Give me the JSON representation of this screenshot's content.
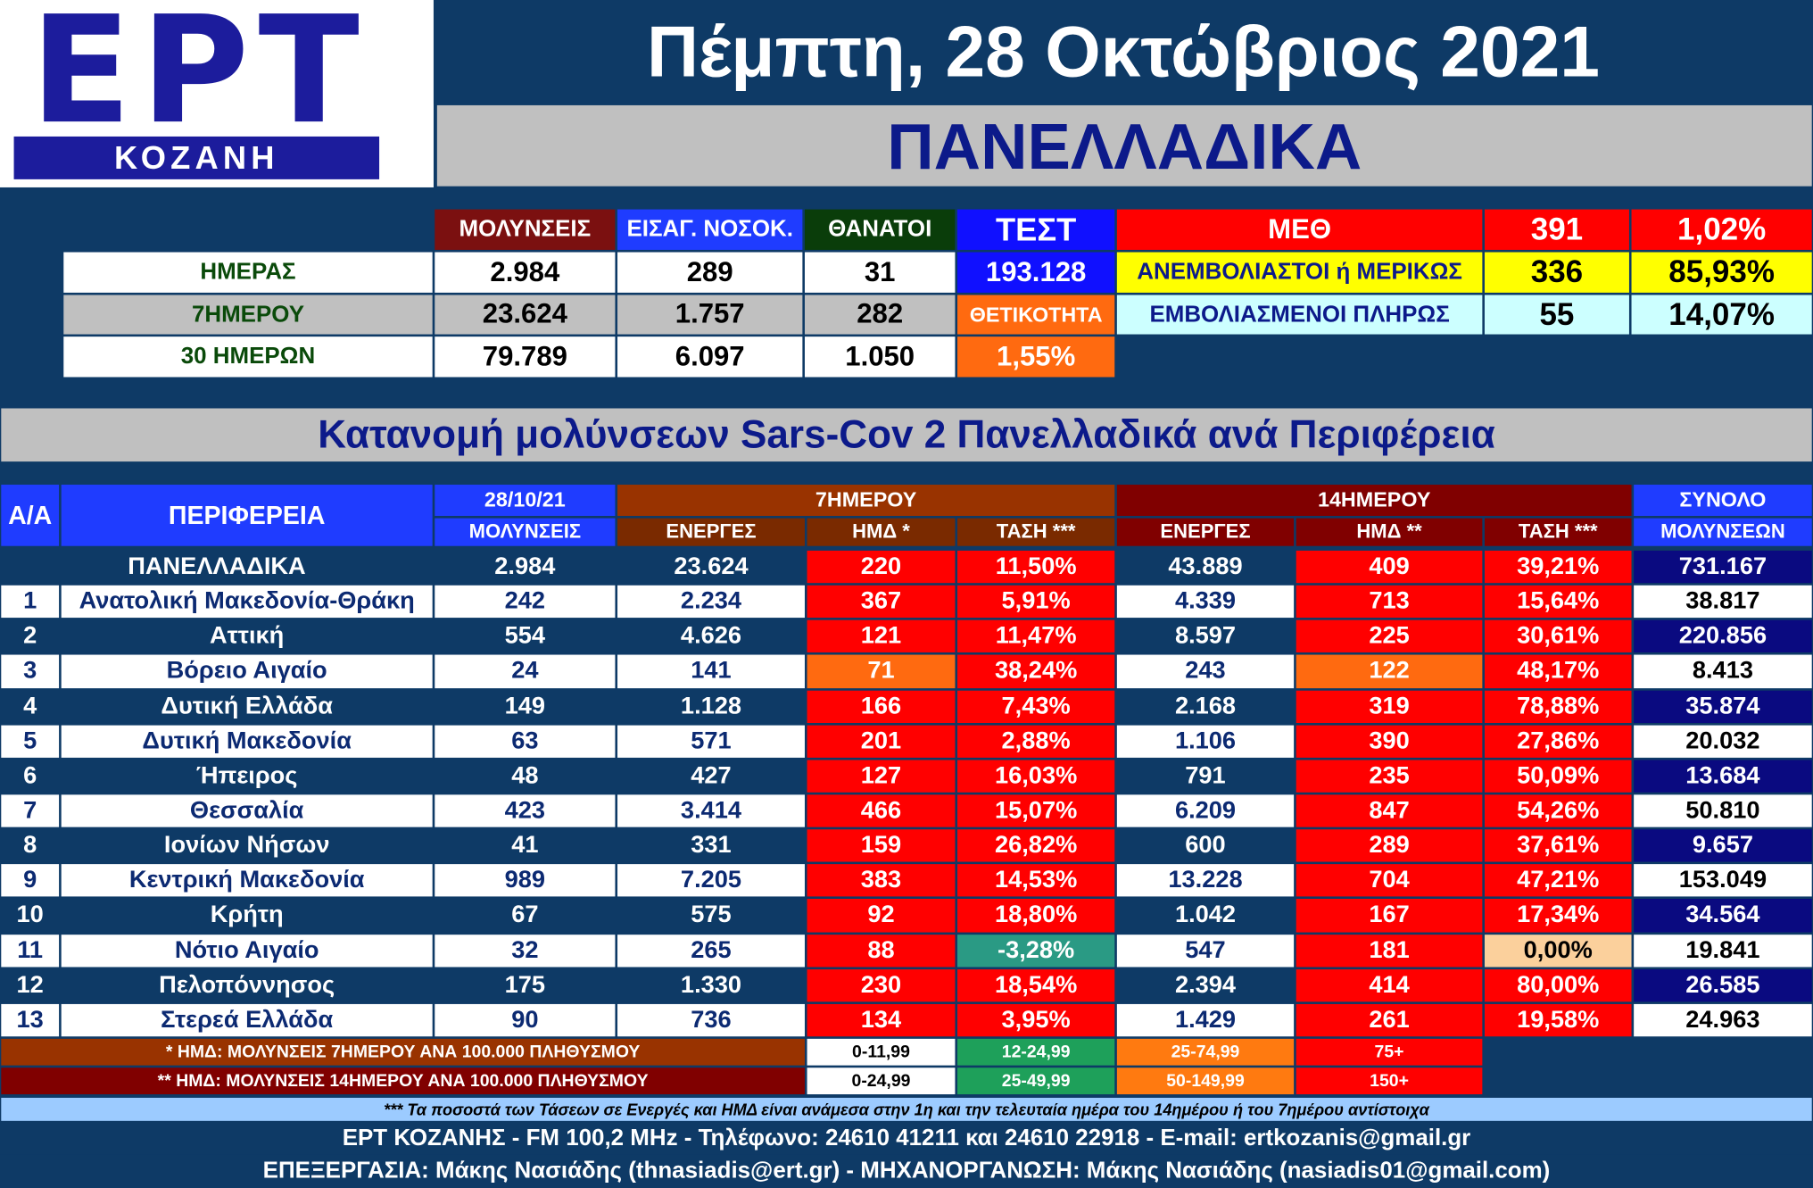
{
  "header": {
    "logo_title": "ΕΡΤ",
    "logo_subtitle": "ΚΟΖΑΝΗ",
    "date": "Πέμπτη, 28 Οκτώβριος 2021",
    "region": "ΠΑΝΕΛΛΑΔΙΚΑ"
  },
  "summary": {
    "headers": [
      "ΜΟΛΥΝΣΕΙΣ",
      "ΕΙΣΑΓ. ΝΟΣΟΚ.",
      "ΘΑΝΑΤΟΙ",
      "ΤΕΣΤ"
    ],
    "rows": [
      {
        "label": "ΗΜΕΡΑΣ",
        "values": [
          "2.984",
          "289",
          "31",
          "193.128"
        ]
      },
      {
        "label": "7ΗΜΕΡΟΥ",
        "values": [
          "23.624",
          "1.757",
          "282",
          "ΘΕΤΙΚΟΤΗΤΑ"
        ]
      },
      {
        "label": "30 ΗΜΕΡΩΝ",
        "values": [
          "79.789",
          "6.097",
          "1.050",
          "1,55%"
        ]
      }
    ]
  },
  "icu": {
    "rows": [
      [
        "ΜΕΘ",
        "391",
        "1,02%"
      ],
      [
        "ΑΝΕΜΒΟΛΙΑΣΤΟΙ ή ΜΕΡΙΚΩΣ",
        "336",
        "85,93%"
      ],
      [
        "ΕΜΒΟΛΙΑΣΜΕΝΟΙ ΠΛΗΡΩΣ",
        "55",
        "14,07%"
      ]
    ]
  },
  "table": {
    "title": "Κατανομή μολύνσεων Sars-Cov 2 Πανελλαδικά ανά Περιφέρεια",
    "head_top": [
      "Α/Α",
      "ΠΕΡΙΦΕΡΕΙΑ",
      "28/10/21",
      "7ΗΜΕΡΟΥ",
      "14ΗΜΕΡΟΥ",
      "ΣΥΝΟΛΟ"
    ],
    "head_sub": [
      "ΜΟΛΥΝΣΕΙΣ",
      "ΕΝΕΡΓΕΣ",
      "ΗΜΔ *",
      "ΤΑΣΗ ***",
      "ΕΝΕΡΓΕΣ",
      "ΗΜΔ **",
      "ΤΑΣΗ ***",
      "ΜΟΛΥΝΣΕΩΝ"
    ],
    "total": [
      "ΠΑΝΕΛΛΑΔΙΚΑ",
      "2.984",
      "23.624",
      "220",
      "11,50%",
      "43.889",
      "409",
      "39,21%",
      "731.167"
    ],
    "rows": [
      {
        "cells": [
          "1",
          "Ανατολική Μακεδονία-Θράκη",
          "242",
          "2.234",
          "367",
          "5,91%",
          "4.339",
          "713",
          "15,64%",
          "38.817"
        ]
      },
      {
        "cells": [
          "2",
          "Αττική",
          "554",
          "4.626",
          "121",
          "11,47%",
          "8.597",
          "225",
          "30,61%",
          "220.856"
        ]
      },
      {
        "cells": [
          "3",
          "Βόρειο Αιγαίο",
          "24",
          "141",
          "71",
          "38,24%",
          "243",
          "122",
          "48,17%",
          "8.413"
        ],
        "fills": {
          "4": "#ff6a10",
          "7": "#ff6a10"
        }
      },
      {
        "cells": [
          "4",
          "Δυτική Ελλάδα",
          "149",
          "1.128",
          "166",
          "7,43%",
          "2.168",
          "319",
          "78,88%",
          "35.874"
        ]
      },
      {
        "cells": [
          "5",
          "Δυτική Μακεδονία",
          "63",
          "571",
          "201",
          "2,88%",
          "1.106",
          "390",
          "27,86%",
          "20.032"
        ]
      },
      {
        "cells": [
          "6",
          "Ήπειρος",
          "48",
          "427",
          "127",
          "16,03%",
          "791",
          "235",
          "50,09%",
          "13.684"
        ]
      },
      {
        "cells": [
          "7",
          "Θεσσαλία",
          "423",
          "3.414",
          "466",
          "15,07%",
          "6.209",
          "847",
          "54,26%",
          "50.810"
        ]
      },
      {
        "cells": [
          "8",
          "Ιονίων Νήσων",
          "41",
          "331",
          "159",
          "26,82%",
          "600",
          "289",
          "37,61%",
          "9.657"
        ]
      },
      {
        "cells": [
          "9",
          "Κεντρική Μακεδονία",
          "989",
          "7.205",
          "383",
          "14,53%",
          "13.228",
          "704",
          "47,21%",
          "153.049"
        ]
      },
      {
        "cells": [
          "10",
          "Κρήτη",
          "67",
          "575",
          "92",
          "18,80%",
          "1.042",
          "167",
          "17,34%",
          "34.564"
        ]
      },
      {
        "cells": [
          "11",
          "Νότιο Αιγαίο",
          "32",
          "265",
          "88",
          "-3,28%",
          "547",
          "181",
          "0,00%",
          "19.841"
        ],
        "fills": {
          "5": "#2a9a84",
          "8": "#fbd09c"
        }
      },
      {
        "cells": [
          "12",
          "Πελοπόννησος",
          "175",
          "1.330",
          "230",
          "18,54%",
          "2.394",
          "414",
          "80,00%",
          "26.585"
        ]
      },
      {
        "cells": [
          "13",
          "Στερεά Ελλάδα",
          "90",
          "736",
          "134",
          "3,95%",
          "1.429",
          "261",
          "19,58%",
          "24.963"
        ]
      }
    ]
  },
  "legend": [
    {
      "label": "* ΗΜΔ: ΜΟΛΥΝΣΕΙΣ 7ΗΜΕΡΟΥ ΑΝΑ 100.000 ΠΛΗΘΥΣΜΟΥ",
      "ranges": [
        "0-11,99",
        "12-24,99",
        "25-74,99",
        "75+"
      ]
    },
    {
      "label": "** ΗΜΔ: ΜΟΛΥΝΣΕΙΣ 14ΗΜΕΡΟΥ ΑΝΑ 100.000 ΠΛΗΘΥΣΜΟΥ",
      "ranges": [
        "0-24,99",
        "25-49,99",
        "50-149,99",
        "150+"
      ]
    }
  ],
  "footer": {
    "note": "*** Τα ποσοστά των Τάσεων σε Ενεργές και ΗΜΔ είναι ανάμεσα στην 1η και την τελευταία ημέρα του 14ημέρου ή του 7ημέρου αντίστοιχα",
    "contact": "ΕΡΤ ΚΟΖΑΝΗΣ - FM 100,2 MHz - Τηλέφωνο: 24610 41211 και 24610 22918 - E-mail: ertkozanis@gmail.gr",
    "credits": "ΕΠΕΞΕΡΓΑΣΙΑ: Μάκης Νασιάδης (thnasiadis@ert.gr) - ΜΗΧΑΝΟΡΓΑΝΩΣΗ: Μάκης Νασιάδης (nasiadis01@gmail.com)"
  }
}
